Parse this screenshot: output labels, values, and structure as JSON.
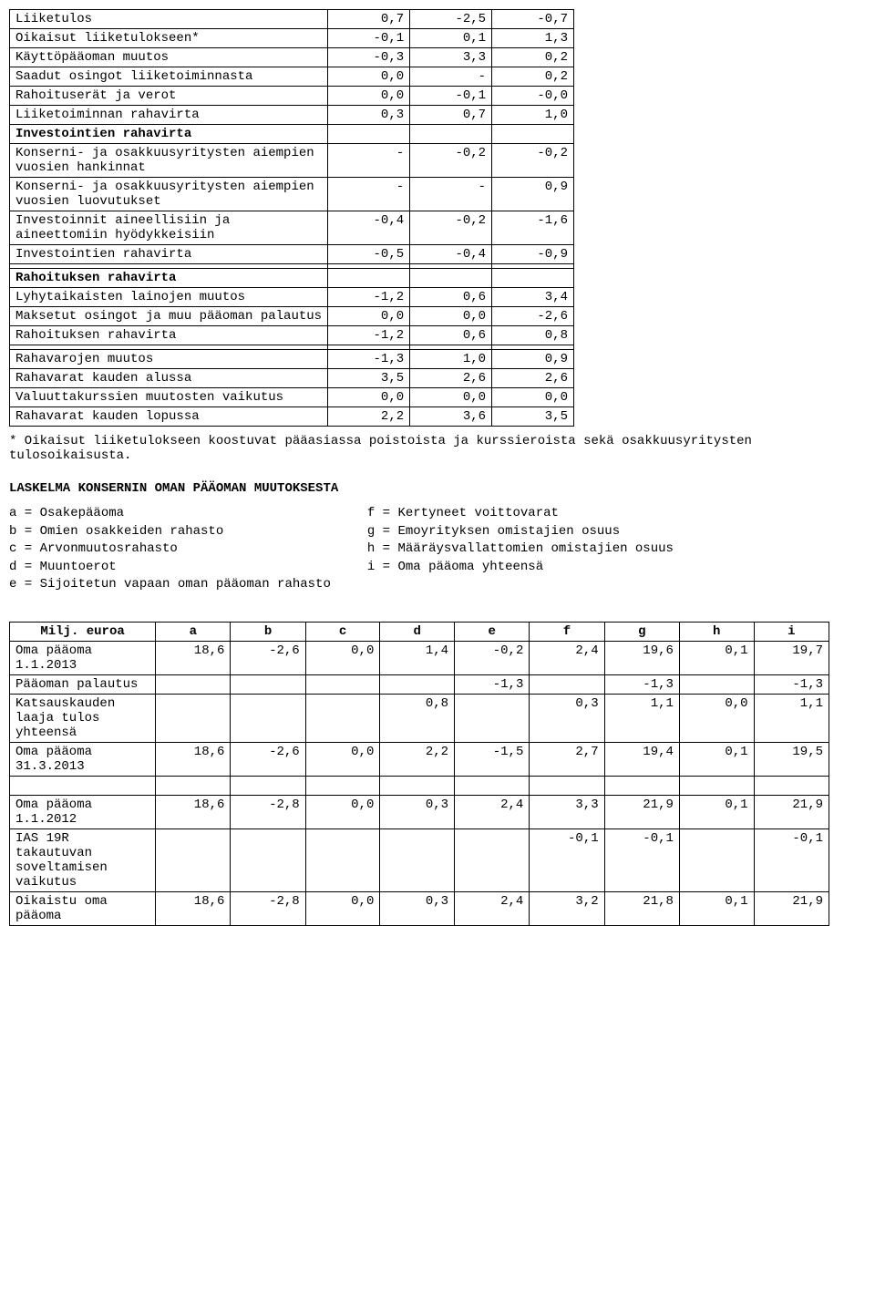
{
  "table1": {
    "rows": [
      {
        "label": "Liiketulos",
        "c1": "0,7",
        "c2": "-2,5",
        "c3": "-0,7",
        "bold": false
      },
      {
        "label": "Oikaisut liiketulokseen*",
        "c1": "-0,1",
        "c2": "0,1",
        "c3": "1,3",
        "bold": false
      },
      {
        "label": "Käyttöpääoman muutos",
        "c1": "-0,3",
        "c2": "3,3",
        "c3": "0,2",
        "bold": false
      },
      {
        "label": "Saadut osingot liiketoiminnasta",
        "c1": "0,0",
        "c2": "-",
        "c3": "0,2",
        "bold": false
      },
      {
        "label": "Rahoituserät ja verot",
        "c1": "0,0",
        "c2": "-0,1",
        "c3": "-0,0",
        "bold": false
      },
      {
        "label": "Liiketoiminnan rahavirta",
        "c1": "0,3",
        "c2": "0,7",
        "c3": "1,0",
        "bold": false
      },
      {
        "label": "Investointien rahavirta",
        "c1": "",
        "c2": "",
        "c3": "",
        "bold": true
      },
      {
        "label": "Konserni- ja osakkuusyritysten aiempien vuosien hankinnat",
        "c1": "-",
        "c2": "-0,2",
        "c3": "-0,2",
        "bold": false
      },
      {
        "label": "Konserni- ja osakkuusyritysten aiempien vuosien luovutukset",
        "c1": "-",
        "c2": "-",
        "c3": "0,9",
        "bold": false
      },
      {
        "label": "Investoinnit aineellisiin ja aineettomiin hyödykkeisiin",
        "c1": "-0,4",
        "c2": "-0,2",
        "c3": "-1,6",
        "bold": false
      },
      {
        "label": "Investointien rahavirta",
        "c1": "-0,5",
        "c2": "-0,4",
        "c3": "-0,9",
        "bold": false
      },
      {
        "label": "",
        "c1": "",
        "c2": "",
        "c3": "",
        "bold": false
      },
      {
        "label": "Rahoituksen rahavirta",
        "c1": "",
        "c2": "",
        "c3": "",
        "bold": true
      },
      {
        "label": "Lyhytaikaisten lainojen muutos",
        "c1": "-1,2",
        "c2": "0,6",
        "c3": "3,4",
        "bold": false
      },
      {
        "label": "Maksetut osingot ja muu pääoman palautus",
        "c1": "0,0",
        "c2": "0,0",
        "c3": "-2,6",
        "bold": false
      },
      {
        "label": "Rahoituksen rahavirta",
        "c1": "-1,2",
        "c2": "0,6",
        "c3": "0,8",
        "bold": false
      },
      {
        "label": "",
        "c1": "",
        "c2": "",
        "c3": "",
        "bold": false
      },
      {
        "label": "Rahavarojen muutos",
        "c1": "-1,3",
        "c2": "1,0",
        "c3": "0,9",
        "bold": false
      },
      {
        "label": "Rahavarat kauden alussa",
        "c1": "3,5",
        "c2": "2,6",
        "c3": "2,6",
        "bold": false
      },
      {
        "label": "Valuuttakurssien muutosten vaikutus",
        "c1": "0,0",
        "c2": "0,0",
        "c3": "0,0",
        "bold": false
      },
      {
        "label": "Rahavarat kauden lopussa",
        "c1": "2,2",
        "c2": "3,6",
        "c3": "3,5",
        "bold": false
      }
    ]
  },
  "footnote": "* Oikaisut liiketulokseen koostuvat pääasiassa poistoista ja kurssieroista sekä osakkuusyritysten tulosoikaisusta.",
  "section2_title": "LASKELMA KONSERNIN OMAN PÄÄOMAN MUUTOKSESTA",
  "legend": {
    "left": [
      "a = Osakepääoma",
      "b = Omien osakkeiden rahasto",
      "c = Arvonmuutosrahasto",
      "d = Muuntoerot",
      "e = Sijoitetun vapaan oman pääoman rahasto"
    ],
    "right": [
      "f = Kertyneet voittovarat",
      "g = Emoyrityksen omistajien osuus",
      "h = Määräysvallattomien omistajien osuus",
      "i = Oma pääoma yhteensä"
    ]
  },
  "table2": {
    "header": [
      "Milj. euroa",
      "a",
      "b",
      "c",
      "d",
      "e",
      "f",
      "g",
      "h",
      "i"
    ],
    "rows": [
      {
        "label": "Oma pääoma 1.1.2013",
        "v": [
          "18,6",
          "-2,6",
          "0,0",
          "1,4",
          "-0,2",
          "2,4",
          "19,6",
          "0,1",
          "19,7"
        ]
      },
      {
        "label": "Pääoman palautus",
        "v": [
          "",
          "",
          "",
          "",
          "-1,3",
          "",
          "-1,3",
          "",
          "-1,3"
        ]
      },
      {
        "label": "Katsauskauden laaja tulos yhteensä",
        "v": [
          "",
          "",
          "",
          "0,8",
          "",
          "0,3",
          "1,1",
          "0,0",
          "1,1"
        ]
      },
      {
        "label": "Oma pääoma 31.3.2013",
        "v": [
          "18,6",
          "-2,6",
          "0,0",
          "2,2",
          "-1,5",
          "2,7",
          "19,4",
          "0,1",
          "19,5"
        ]
      },
      {
        "spacer": true
      },
      {
        "label": "Oma pääoma 1.1.2012",
        "v": [
          "18,6",
          "-2,8",
          "0,0",
          "0,3",
          "2,4",
          "3,3",
          "21,9",
          "0,1",
          "21,9"
        ]
      },
      {
        "label": "IAS 19R takautuvan soveltamisen vaikutus",
        "v": [
          "",
          "",
          "",
          "",
          "",
          "-0,1",
          "-0,1",
          "",
          "-0,1"
        ]
      },
      {
        "label": "Oikaistu oma pääoma",
        "v": [
          "18,6",
          "-2,8",
          "0,0",
          "0,3",
          "2,4",
          "3,2",
          "21,8",
          "0,1",
          "21,9"
        ]
      }
    ]
  }
}
